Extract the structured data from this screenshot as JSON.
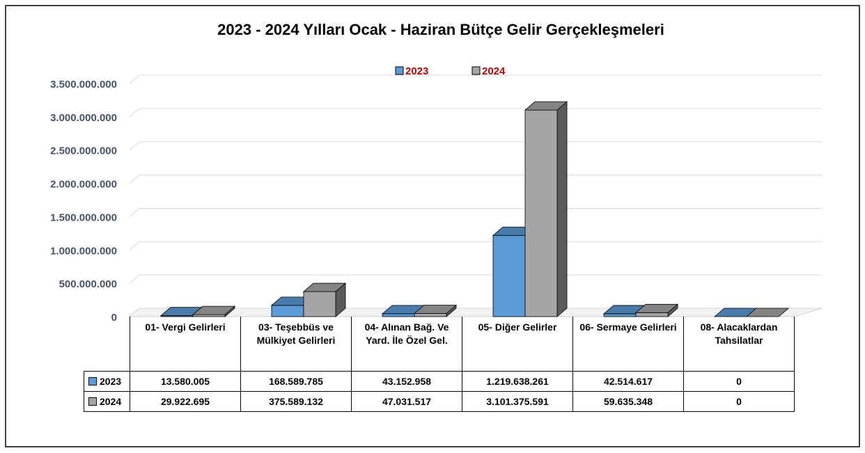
{
  "chart_data": {
    "type": "bar",
    "title": "2023 - 2024 Yılları Ocak - Haziran Bütçe Gelir Gerçekleşmeleri",
    "categories": [
      "01- Vergi Gelirleri",
      "03- Teşebbüs ve Mülkiyet Gelirleri",
      "04- Alınan Bağ. Ve Yard. İle Özel Gel.",
      "05- Diğer Gelirler",
      "06- Sermaye Gelirleri",
      "08- Alacaklardan Tahsilatlar"
    ],
    "series": [
      {
        "name": "2023",
        "color": "#5b9bd5",
        "values": [
          13580005,
          168589785,
          43152958,
          1219638261,
          42514617,
          0
        ],
        "value_labels": [
          "13.580.005",
          "168.589.785",
          "43.152.958",
          "1.219.638.261",
          "42.514.617",
          "0"
        ]
      },
      {
        "name": "2024",
        "color": "#a5a5a5",
        "values": [
          29922695,
          375589132,
          47031517,
          3101375591,
          59635348,
          0
        ],
        "value_labels": [
          "29.922.695",
          "375.589.132",
          "47.031.517",
          "3.101.375.591",
          "59.635.348",
          "0"
        ]
      }
    ],
    "ylim": [
      0,
      3500000000
    ],
    "yticks": [
      0,
      {
        "value": 500000000,
        "label": "500.000.000"
      },
      {
        "value": 1000000000,
        "label": "1.000.000.000"
      },
      {
        "value": 1500000000,
        "label": "1.500.000.000"
      },
      {
        "value": 2000000000,
        "label": "2.000.000.000"
      },
      {
        "value": 2500000000,
        "label": "2.500.000.000"
      },
      {
        "value": 3000000000,
        "label": "3.000.000.000"
      },
      {
        "value": 3500000000,
        "label": "3.500.000.000"
      }
    ],
    "grid": true,
    "legend": "top"
  }
}
